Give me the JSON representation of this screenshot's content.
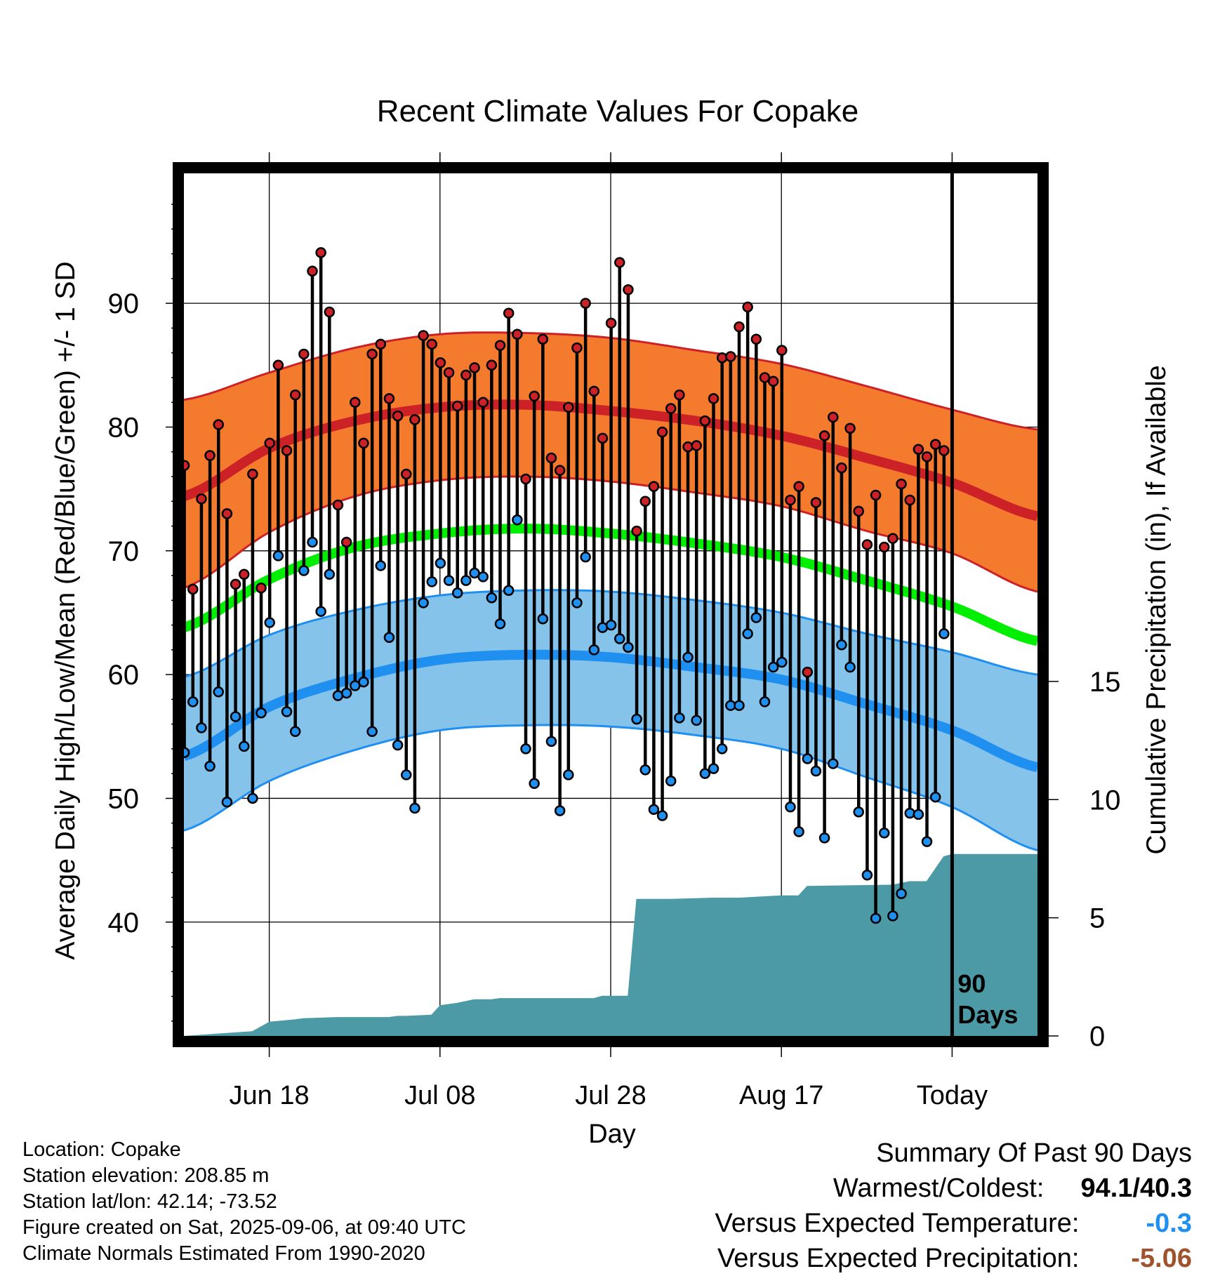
{
  "chart_data": {
    "type": "line",
    "title": "Recent Climate Values For Copake",
    "xlabel": "Day",
    "ylabel": "Average Daily High/Low/Mean (Red/Blue/Green) +/- 1 SD",
    "y2label": "Cumulative Precipitation (in), If Available",
    "ylim": [
      30.8,
      100.5
    ],
    "y2lim": [
      0,
      36.5
    ],
    "yticks": [
      40,
      50,
      60,
      70,
      80,
      90
    ],
    "y2ticks": [
      0,
      5,
      10,
      15
    ],
    "xticks": [
      {
        "day": 10,
        "label": "Jun 18"
      },
      {
        "day": 30,
        "label": "Jul 08"
      },
      {
        "day": 50,
        "label": "Jul 28"
      },
      {
        "day": 70,
        "label": "Aug 17"
      },
      {
        "day": 90,
        "label": "Today"
      }
    ],
    "today_marker": {
      "day": 90,
      "label_line1": "90",
      "label_line2": "Days"
    },
    "normals": {
      "days": [
        0,
        10,
        20,
        30,
        40,
        50,
        60,
        70,
        80,
        90,
        100
      ],
      "high_mean": [
        74.4,
        78.3,
        80.5,
        81.6,
        81.8,
        81.3,
        80.5,
        79.3,
        77.5,
        75.5,
        72.8
      ],
      "high_upper": [
        82.2,
        84.4,
        86.4,
        87.5,
        87.6,
        87.2,
        86.2,
        85.1,
        83.3,
        81.4,
        79.8
      ],
      "high_lower": [
        67.0,
        71.5,
        74.4,
        75.7,
        76.0,
        75.6,
        74.7,
        73.6,
        71.6,
        69.8,
        66.7
      ],
      "mean_mean": [
        63.8,
        67.7,
        70.3,
        71.4,
        71.8,
        71.4,
        70.6,
        69.5,
        67.6,
        65.5,
        62.7
      ],
      "low_mean": [
        53.4,
        57.4,
        59.7,
        61.2,
        61.6,
        61.4,
        60.6,
        59.6,
        57.6,
        55.5,
        52.5
      ],
      "low_upper": [
        59.8,
        63.2,
        65.2,
        66.4,
        66.8,
        66.7,
        66.0,
        65.0,
        63.3,
        61.8,
        60.0
      ],
      "low_lower": [
        47.4,
        51.4,
        53.9,
        55.5,
        55.9,
        55.8,
        55.1,
        54.0,
        51.7,
        49.3,
        45.8
      ]
    },
    "series": [
      {
        "name": "Red",
        "values": [
          76.9,
          66.9,
          74.2,
          77.7,
          80.2,
          73.0,
          67.3,
          68.1,
          76.2,
          67.0,
          78.7,
          85.0,
          78.1,
          82.6,
          85.9,
          92.6,
          94.1,
          89.3,
          73.7,
          70.7,
          82.0,
          78.7,
          85.9,
          86.7,
          82.3,
          80.9,
          76.2,
          80.6,
          87.4,
          86.7,
          85.2,
          84.4,
          81.7,
          84.2,
          84.8,
          82.0,
          85.0,
          86.6,
          89.2,
          87.5,
          75.8,
          82.5,
          87.1,
          77.5,
          76.5,
          81.6,
          86.4,
          90.0,
          82.9,
          79.1,
          88.4,
          93.3,
          91.1,
          71.6,
          74.0,
          75.2,
          79.6,
          81.5,
          82.6,
          78.4,
          78.5,
          80.5,
          82.3,
          85.6,
          85.7,
          88.1,
          89.7,
          87.1,
          84.0,
          83.7,
          86.2,
          74.1,
          75.2,
          60.2,
          73.9,
          79.3,
          80.8,
          76.7,
          79.9,
          73.2,
          70.5,
          74.5,
          70.3,
          71.0,
          75.4,
          74.1,
          78.2,
          77.6,
          78.6,
          78.1
        ]
      },
      {
        "name": "Blue",
        "values": [
          53.7,
          57.8,
          55.7,
          52.6,
          58.6,
          49.7,
          56.6,
          54.2,
          50.0,
          56.9,
          64.2,
          69.6,
          57.0,
          55.4,
          68.4,
          70.7,
          65.1,
          68.1,
          58.3,
          58.5,
          59.1,
          59.4,
          55.4,
          68.8,
          63.0,
          54.3,
          51.9,
          49.2,
          65.8,
          67.5,
          69.0,
          67.6,
          66.6,
          67.6,
          68.2,
          67.9,
          66.2,
          64.1,
          66.8,
          72.5,
          54.0,
          51.2,
          64.5,
          54.6,
          49.0,
          51.9,
          65.8,
          69.5,
          62.0,
          63.8,
          64.0,
          62.9,
          62.2,
          56.4,
          52.3,
          49.1,
          48.6,
          51.4,
          56.5,
          61.4,
          56.3,
          52.0,
          52.4,
          54.0,
          57.5,
          57.5,
          63.3,
          64.6,
          57.8,
          60.6,
          61.0,
          49.3,
          47.3,
          53.2,
          52.2,
          46.8,
          52.8,
          62.4,
          60.6,
          48.9,
          43.8,
          40.3,
          47.2,
          40.5,
          42.3,
          48.8,
          48.7,
          46.5,
          50.1,
          63.3
        ]
      }
    ],
    "precipitation": {
      "days": [
        0,
        8,
        10,
        13,
        14,
        18,
        20,
        24,
        25,
        26,
        29,
        30,
        32,
        34,
        36,
        37,
        48,
        49,
        50,
        52,
        53,
        57,
        62,
        65,
        70,
        72,
        73,
        83,
        85,
        87,
        89,
        90,
        100
      ],
      "values": [
        0.0,
        0.2,
        0.6,
        0.7,
        0.75,
        0.8,
        0.8,
        0.8,
        0.85,
        0.85,
        0.9,
        1.3,
        1.4,
        1.55,
        1.55,
        1.6,
        1.6,
        1.7,
        1.7,
        1.7,
        5.8,
        5.8,
        5.85,
        5.85,
        5.95,
        5.95,
        6.35,
        6.4,
        6.55,
        6.55,
        7.6,
        7.7,
        7.7
      ]
    },
    "legend": "none",
    "grid": true
  },
  "info": {
    "location": "Location: Copake",
    "elevation": "Station elevation: 208.85 m",
    "latlon": "Station lat/lon: 42.14; -73.52",
    "created": "Figure created on Sat, 2025-09-06, at 09:40 UTC",
    "normals_period": "Climate Normals Estimated From 1990-2020"
  },
  "summary": {
    "heading": "Summary Of Past 90 Days",
    "warm_cold_label": "Warmest/Coldest:",
    "warm_cold_value": "94.1/40.3",
    "temp_label": "Versus Expected Temperature:",
    "temp_value": "-0.3",
    "precip_label": "Versus Expected Precipitation:",
    "precip_value": "-5.06"
  },
  "colors": {
    "high_band": "#f47b2d",
    "high_line": "#cc2227",
    "mean_line": "#00ee00",
    "low_band": "#85c3ea",
    "low_line": "#1f8ff0",
    "precip_fill": "#4b9aa5",
    "high_point": "#cc2227",
    "low_point": "#1f8ff0",
    "temp_value": "#1f8ff0",
    "precip_value": "#a0522d"
  }
}
